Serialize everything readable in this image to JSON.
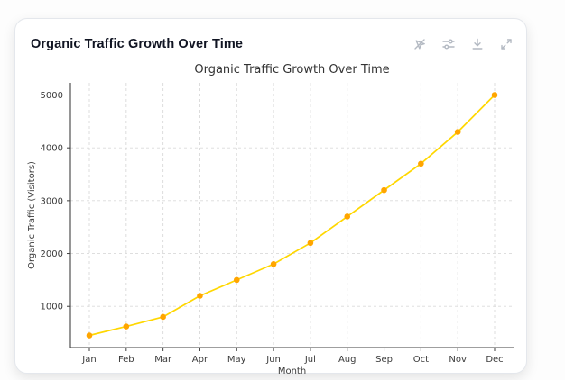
{
  "card": {
    "title": "Organic Traffic Growth Over Time",
    "toolbar": {
      "icons": [
        "pointer-off",
        "sliders",
        "download",
        "expand"
      ]
    }
  },
  "chart_data": {
    "type": "line",
    "title": "Organic Traffic Growth Over Time",
    "xlabel": "Month",
    "ylabel": "Organic Traffic (Visitors)",
    "categories": [
      "Jan",
      "Feb",
      "Mar",
      "Apr",
      "May",
      "Jun",
      "Jul",
      "Aug",
      "Sep",
      "Oct",
      "Nov",
      "Dec"
    ],
    "values": [
      450,
      620,
      800,
      1200,
      1500,
      1800,
      2200,
      2700,
      3200,
      3700,
      4300,
      5000
    ],
    "yticks": [
      1000,
      2000,
      3000,
      4000,
      5000
    ],
    "ylim": [
      220,
      5230
    ],
    "grid": true,
    "grid_style": "dashed",
    "legend": "none",
    "line_color": "#FFD700",
    "marker_color": "#FFA500",
    "grid_color": "#d9d9d9",
    "spine_color": "#3f3f3f",
    "text_color": "#333333"
  }
}
